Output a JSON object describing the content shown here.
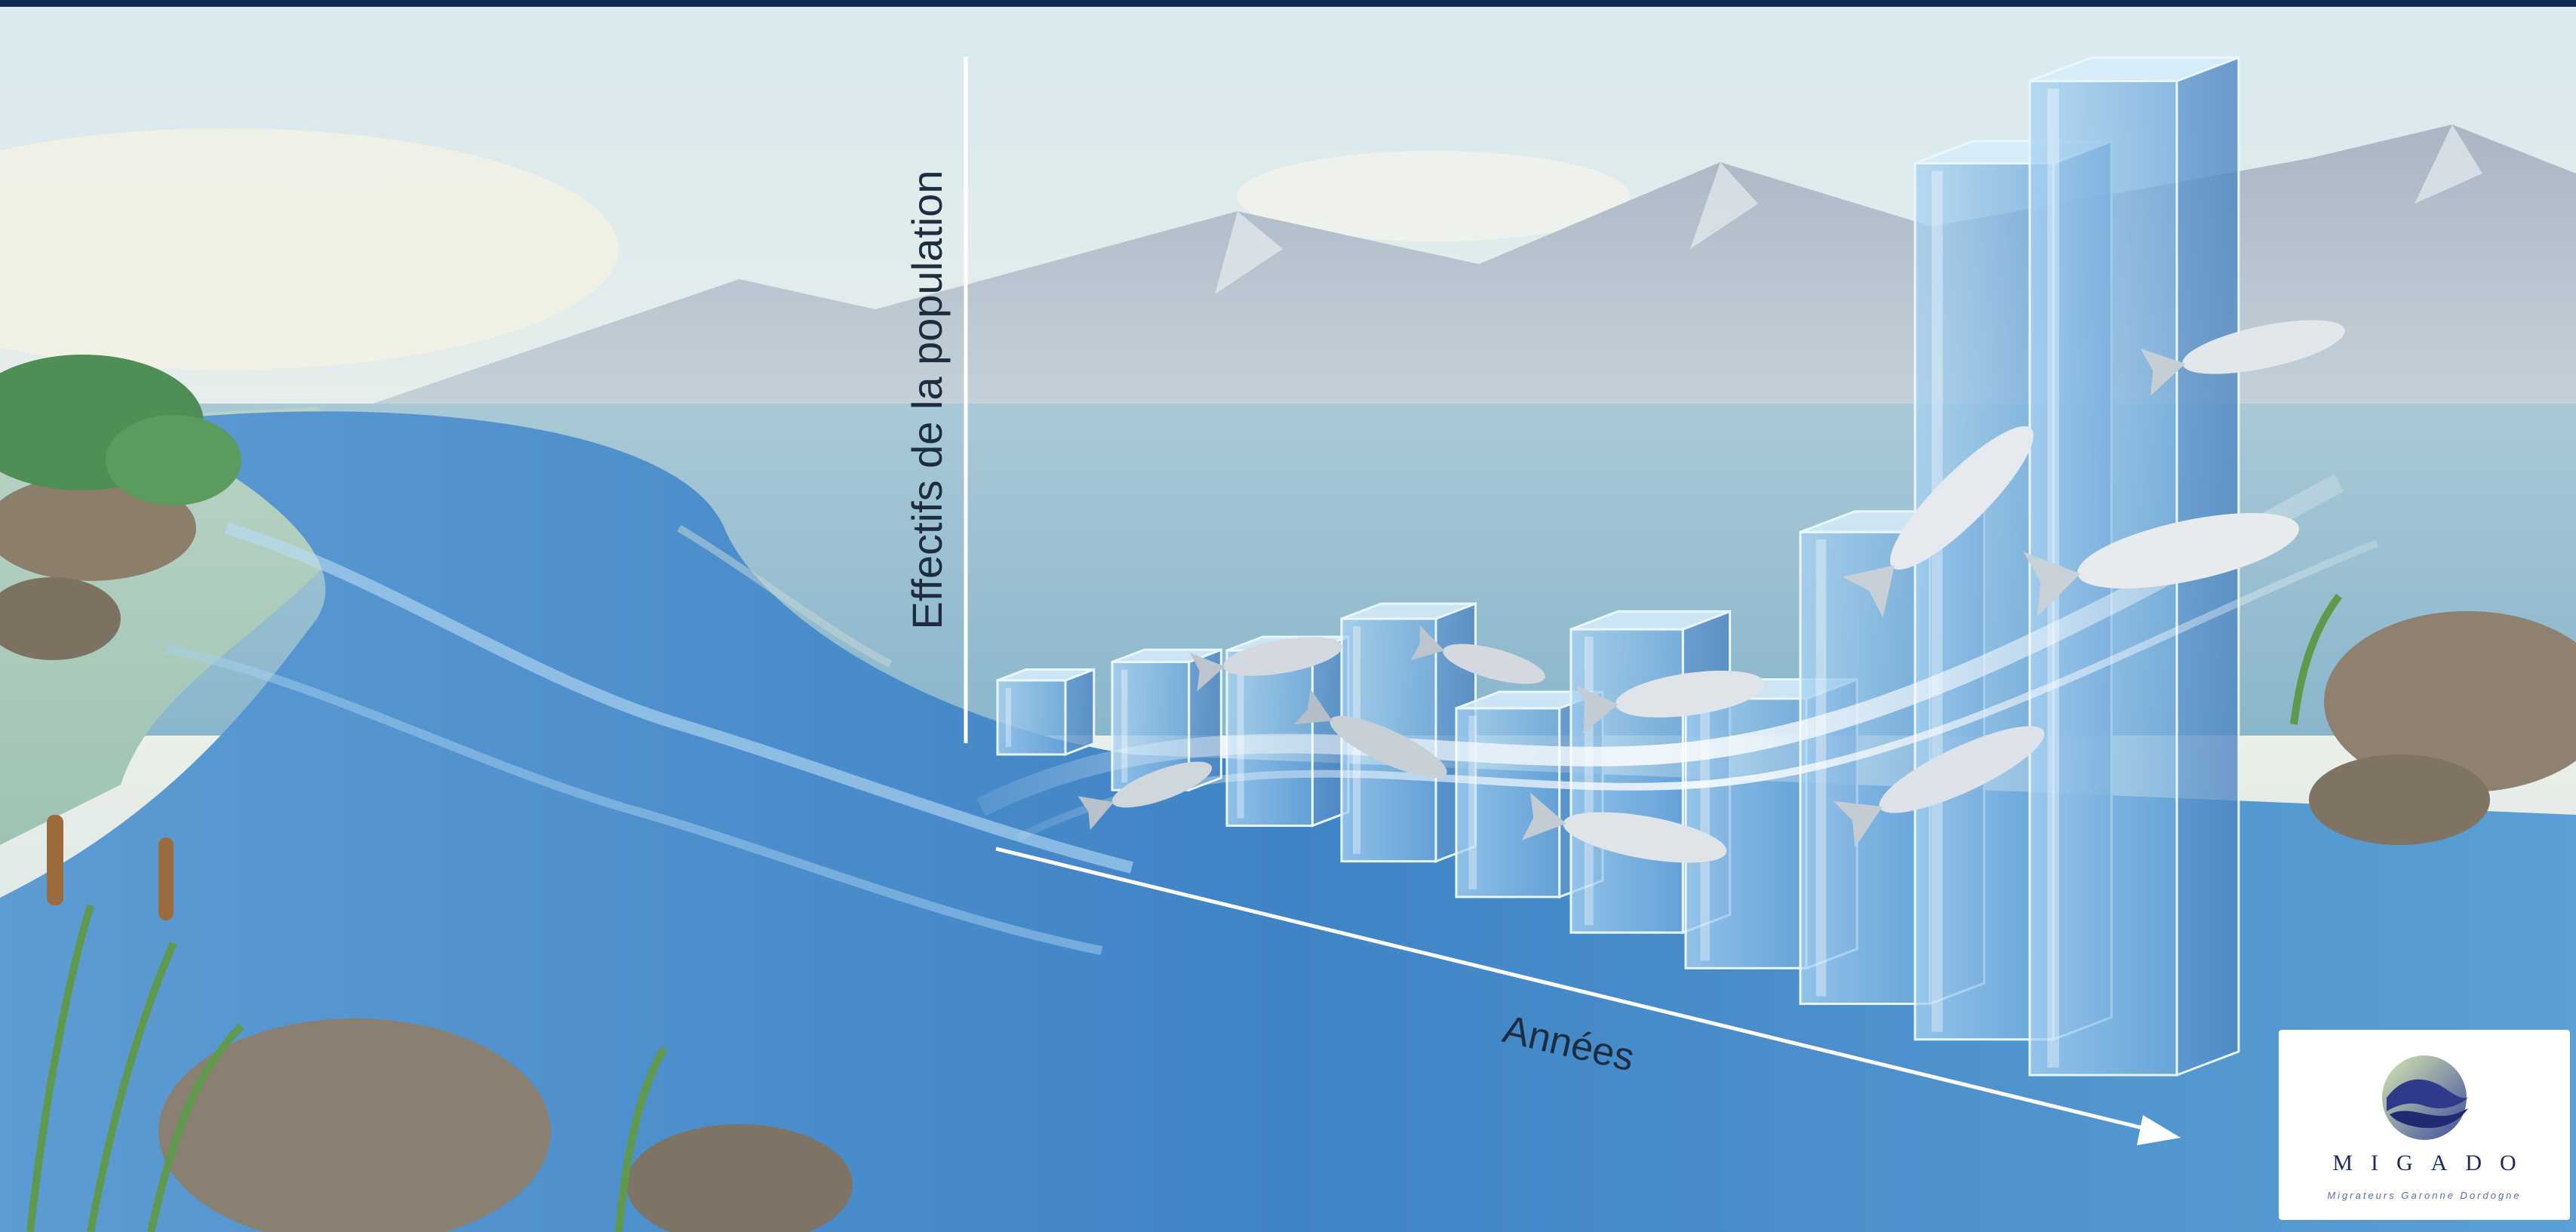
{
  "chart_data": {
    "type": "bar",
    "title": "",
    "xlabel": "Années",
    "ylabel": "Effectifs de la population",
    "categories": [
      "",
      "",
      "",
      "",
      "",
      "",
      "",
      "",
      "",
      ""
    ],
    "values": [
      22,
      38,
      52,
      72,
      56,
      90,
      80,
      140,
      260,
      295
    ],
    "ylim": [
      0,
      300
    ],
    "grid": false,
    "legend": "none",
    "colors": {
      "bar_face": "#8ec3ea",
      "bar_top": "#d6ecfa",
      "bar_edge": "#e8f6ff",
      "river": "#4f90cd",
      "sky": "#e6eef0"
    }
  },
  "brand": {
    "name": "MIGADO",
    "tagline": "Migrateurs Garonne Dordogne",
    "icon": "salmon-logo-icon"
  },
  "scene": {
    "decorations": [
      "river-illustration",
      "mountains",
      "salmon-fish-icons",
      "reeds",
      "rocks"
    ]
  }
}
